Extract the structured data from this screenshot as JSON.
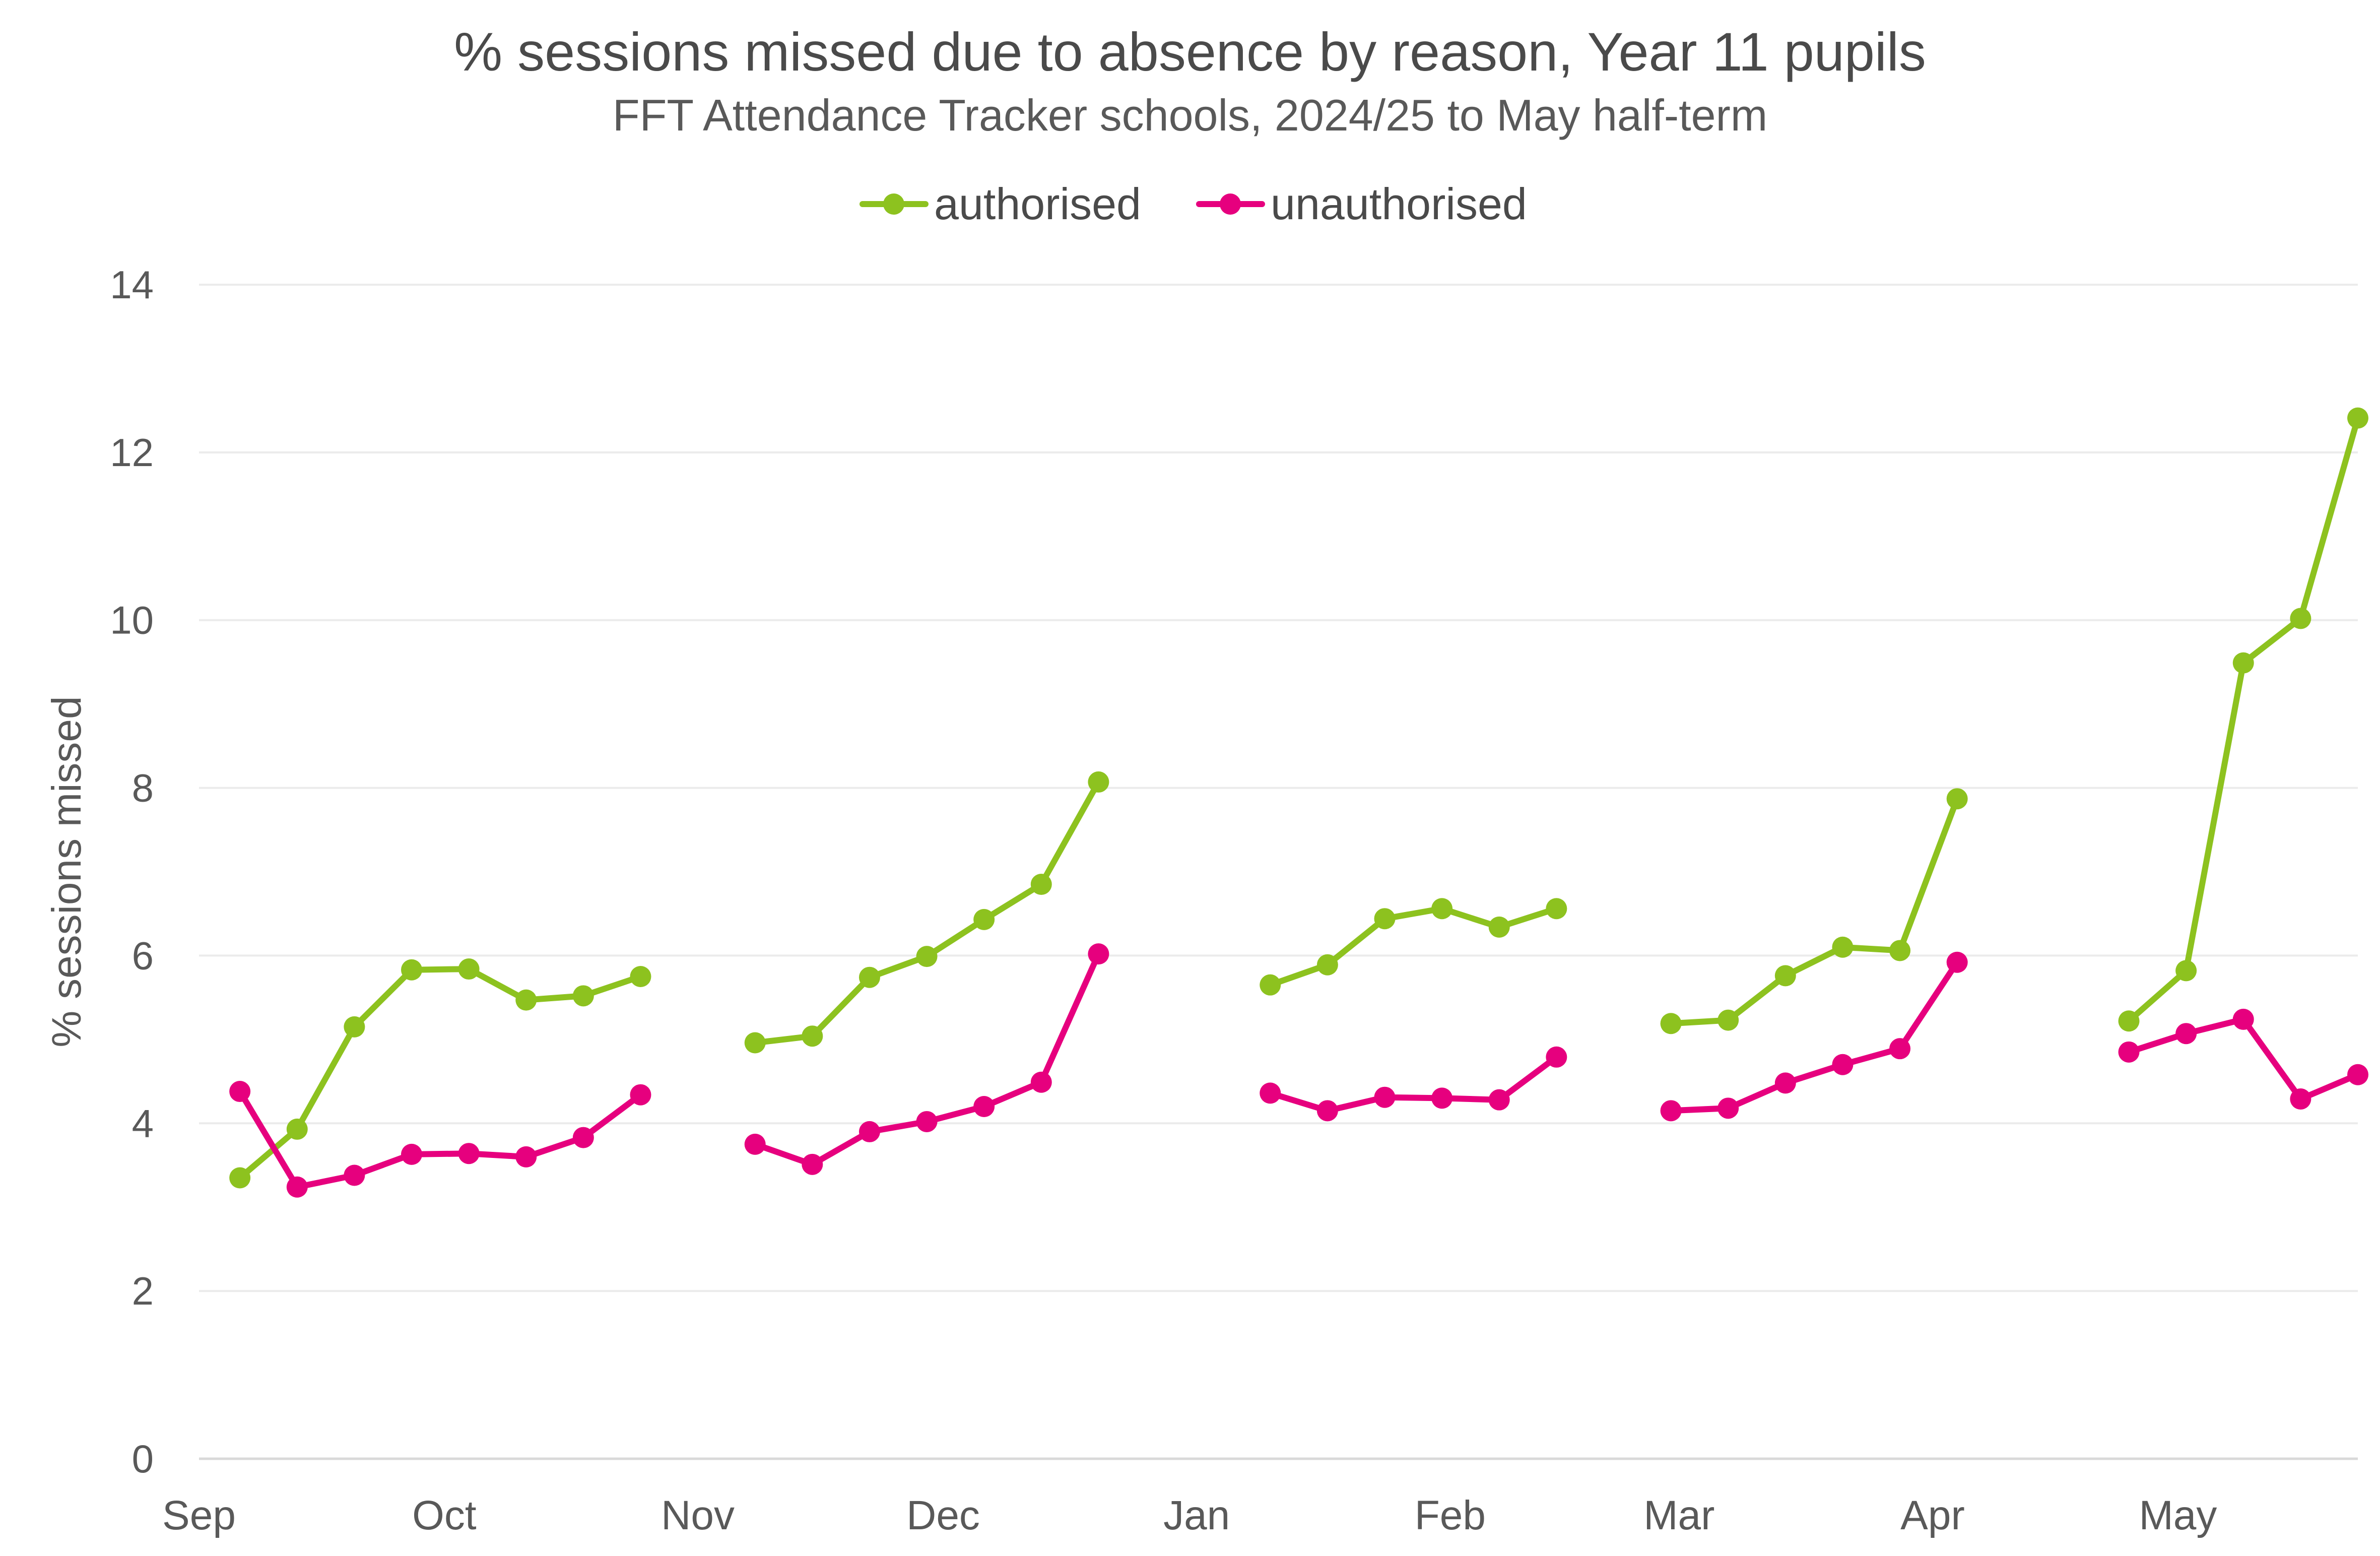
{
  "chart_data": {
    "type": "line",
    "title": "% sessions missed due to absence by reason, Year 11 pupils",
    "subtitle": "FFT Attendance Tracker schools, 2024/25 to May half-term",
    "ylabel": "% sessions missed",
    "xlabel": "",
    "ylim": [
      0,
      14
    ],
    "yticks": [
      0,
      2,
      4,
      6,
      8,
      10,
      12,
      14
    ],
    "x_axis": {
      "type": "date",
      "range": [
        "2024-09-01",
        "2025-05-23"
      ],
      "ticks": [
        {
          "date": "2024-09-01",
          "label": "Sep"
        },
        {
          "date": "2024-10-01",
          "label": "Oct"
        },
        {
          "date": "2024-11-01",
          "label": "Nov"
        },
        {
          "date": "2024-12-01",
          "label": "Dec"
        },
        {
          "date": "2025-01-01",
          "label": "Jan"
        },
        {
          "date": "2025-02-01",
          "label": "Feb"
        },
        {
          "date": "2025-03-01",
          "label": "Mar"
        },
        {
          "date": "2025-04-01",
          "label": "Apr"
        },
        {
          "date": "2025-05-01",
          "label": "May"
        }
      ]
    },
    "grid": "horizontal",
    "legend_position": "top-center",
    "series": [
      {
        "name": "authorised",
        "color": "#8dc21f",
        "segments": [
          [
            [
              "2024-09-06",
              3.35
            ],
            [
              "2024-09-13",
              3.93
            ],
            [
              "2024-09-20",
              5.15
            ],
            [
              "2024-09-27",
              5.83
            ],
            [
              "2024-10-04",
              5.84
            ],
            [
              "2024-10-11",
              5.47
            ],
            [
              "2024-10-18",
              5.52
            ],
            [
              "2024-10-25",
              5.75
            ]
          ],
          [
            [
              "2024-11-08",
              4.96
            ],
            [
              "2024-11-15",
              5.04
            ],
            [
              "2024-11-22",
              5.74
            ],
            [
              "2024-11-29",
              5.99
            ],
            [
              "2024-12-06",
              6.43
            ],
            [
              "2024-12-13",
              6.85
            ],
            [
              "2024-12-20",
              8.07
            ]
          ],
          [
            [
              "2025-01-10",
              5.65
            ],
            [
              "2025-01-17",
              5.89
            ],
            [
              "2025-01-24",
              6.44
            ],
            [
              "2025-01-31",
              6.56
            ],
            [
              "2025-02-07",
              6.34
            ],
            [
              "2025-02-14",
              6.56
            ]
          ],
          [
            [
              "2025-02-28",
              5.19
            ],
            [
              "2025-03-07",
              5.23
            ],
            [
              "2025-03-14",
              5.76
            ],
            [
              "2025-03-21",
              6.1
            ],
            [
              "2025-03-28",
              6.06
            ],
            [
              "2025-04-04",
              7.87
            ]
          ],
          [
            [
              "2025-04-25",
              5.22
            ],
            [
              "2025-05-02",
              5.82
            ],
            [
              "2025-05-09",
              9.49
            ],
            [
              "2025-05-16",
              10.02
            ],
            [
              "2025-05-23",
              12.41
            ]
          ]
        ]
      },
      {
        "name": "unauthorised",
        "color": "#e6007e",
        "segments": [
          [
            [
              "2024-09-06",
              4.38
            ],
            [
              "2024-09-13",
              3.24
            ],
            [
              "2024-09-20",
              3.38
            ],
            [
              "2024-09-27",
              3.63
            ],
            [
              "2024-10-04",
              3.64
            ],
            [
              "2024-10-11",
              3.6
            ],
            [
              "2024-10-18",
              3.83
            ],
            [
              "2024-10-25",
              4.34
            ]
          ],
          [
            [
              "2024-11-08",
              3.75
            ],
            [
              "2024-11-15",
              3.51
            ],
            [
              "2024-11-22",
              3.9
            ],
            [
              "2024-11-29",
              4.02
            ],
            [
              "2024-12-06",
              4.2
            ],
            [
              "2024-12-13",
              4.49
            ],
            [
              "2024-12-20",
              6.02
            ]
          ],
          [
            [
              "2025-01-10",
              4.36
            ],
            [
              "2025-01-17",
              4.15
            ],
            [
              "2025-01-24",
              4.31
            ],
            [
              "2025-01-31",
              4.3
            ],
            [
              "2025-02-07",
              4.28
            ],
            [
              "2025-02-14",
              4.79
            ]
          ],
          [
            [
              "2025-02-28",
              4.15
            ],
            [
              "2025-03-07",
              4.18
            ],
            [
              "2025-03-14",
              4.48
            ],
            [
              "2025-03-21",
              4.7
            ],
            [
              "2025-03-28",
              4.89
            ],
            [
              "2025-04-04",
              5.92
            ]
          ],
          [
            [
              "2025-04-25",
              4.85
            ],
            [
              "2025-05-02",
              5.07
            ],
            [
              "2025-05-09",
              5.24
            ],
            [
              "2025-05-16",
              4.29
            ],
            [
              "2025-05-23",
              4.58
            ]
          ]
        ]
      }
    ]
  },
  "colors": {
    "gridline": "#ebebeb",
    "axis_line": "#d9d9d9",
    "tick_text": "#595959",
    "title_text": "#4a4a4a"
  }
}
